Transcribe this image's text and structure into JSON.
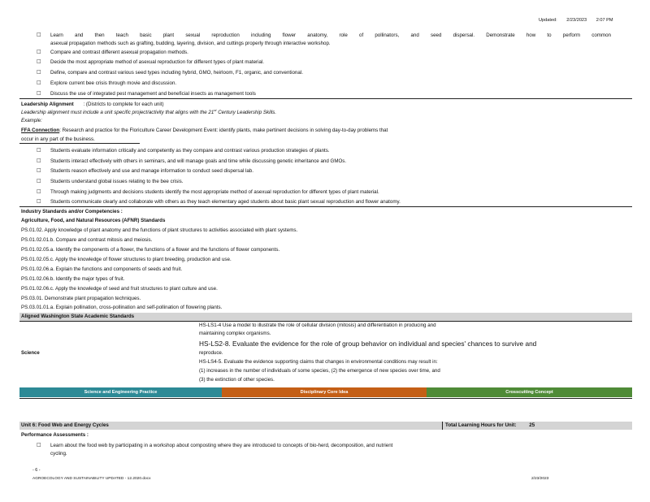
{
  "header": {
    "updated_label": "Updated:",
    "date": "2/23/2023",
    "time": "2:07 PM"
  },
  "top_bullets": [
    {
      "l1": "Learn and then teach basic plant sexual reproduction including flower anatomy, role of pollinators, and seed dispersal. Demonstrate how to perform common",
      "l2": "asexual propagation methods such as grafting, budding, layering, division, and cuttings properly through interactive workshop."
    },
    {
      "l1": "Compare and contrast different asexual propagation methods."
    },
    {
      "l1": "Decide the most appropriate method of asexual reproduction for different types of plant material."
    },
    {
      "l1": "Define, compare and contrast various seed types including hybrid, GMO, heirloom, F1, organic, and conventional."
    },
    {
      "l1": "Explore current bee crisis through movie and discussion."
    },
    {
      "l1": "Discuss the use of integrated pest management and beneficial insects as management tools"
    }
  ],
  "leadership": {
    "heading": "Leadership Alignment",
    "heading_note": ": (Districts to complete for each unit)",
    "italic_line": "Leadership alignment must include a unit specific project/activity that aligns with the 21",
    "italic_sup": "st",
    "italic_end": "Century Leadership Skills.",
    "example": "Example:",
    "ffa_label": "FFA Connection",
    "ffa_text": ": Research and practice for the Floriculture Career Development Event: identify plants, make pertinent decisions in solving day-to-day problems that",
    "ffa_text2": "occur in any part of the business."
  },
  "student_bullets": [
    "Students evaluate information critically and competently as they compare and contrast various production strategies of plants.",
    "Students interact effectively with others in seminars, and will manage goals and time while discussing genetic inheritance and GMOs.",
    "Students reason effectively and use and manage information to conduct seed dispersal lab.",
    "Students understand global issues relating to the bee crisis.",
    "Through making judgments and decisions students identify the most appropriate method of asexual reproduction for different types of plant material.",
    "Students communicate clearly and collaborate with others as they teach elementary aged students about basic plant sexual reproduction and flower anatomy."
  ],
  "industry": {
    "heading": "Industry Standards and/or Competencies :",
    "subheading": "Agriculture, Food, and Natural Resources (AFNR) Standards",
    "items": [
      "PS.01.02. Apply knowledge of plant anatomy and the functions of plant structures to activities associated with plant systems.",
      "PS.01.02.01.b. Compare and contrast mitosis and meiosis.",
      "PS.01.02.05.a. Identify the components of a flower, the functions of a flower and the functions of flower components.",
      "PS.01.02.05.c. Apply the knowledge of flower structures to plant breeding, production and use.",
      "PS.01.02.06.a. Explain the functions and components of seeds and fruit.",
      "PS.01.02.06.b. Identify the major types of fruit.",
      "PS.01.02.06.c. Apply the knowledge of seed and fruit structures to plant culture and use.",
      "PS.03.01. Demonstrate plant propagation techniques.",
      "PS.03.01.01.a. Explain pollination, cross-pollination and self-pollination of flowering plants."
    ]
  },
  "aligned": {
    "heading": "Aligned Washington State Academic Standards"
  },
  "science": {
    "label": "Science",
    "ls1_a": "HS-LS1-4 Use a model to illustrate the role of cellular division (mitosis) and differentiation in producing and",
    "ls1_b": "maintaining complex organisms.",
    "ls2": "HS-LS2-8. Evaluate the evidence for the role of group behavior on individual and species' chances to survive and",
    "ls2_b": "reproduce.",
    "ls4_a": "HS-LS4-5. Evaluate the evidence supporting claims that changes in environmental conditions may result in:",
    "ls4_b": "(1) increases in the number of individuals of some species, (2) the emergence of new species over time, and",
    "ls4_c": "(3) the extinction of other species."
  },
  "concept_bar": {
    "sep": "Science and Engineering Practice",
    "dci": "Disciplinary Core Idea",
    "ccc": "Crosscutting Concept",
    "colors": {
      "sep": "#2d8a96",
      "dci": "#c45f16",
      "ccc": "#4f8b37"
    }
  },
  "unit6": {
    "title": "Unit 6: Food Web and Energy Cycles",
    "hours_label": "Total Learning Hours for Unit:",
    "hours": "25",
    "perf": "Performance Assessments :",
    "bullet_l1": "Learn about the food web by participating in a workshop about composting where they are introduced to concepts of bio-herd, decomposition, and nutrient",
    "bullet_l2": "cycling."
  },
  "footer": {
    "page": "- 6 -",
    "doc": "AGROECOLOGY AND SUSTAINABILITY UPDATED - 12.2020.docx",
    "date": "2/23/2023"
  }
}
